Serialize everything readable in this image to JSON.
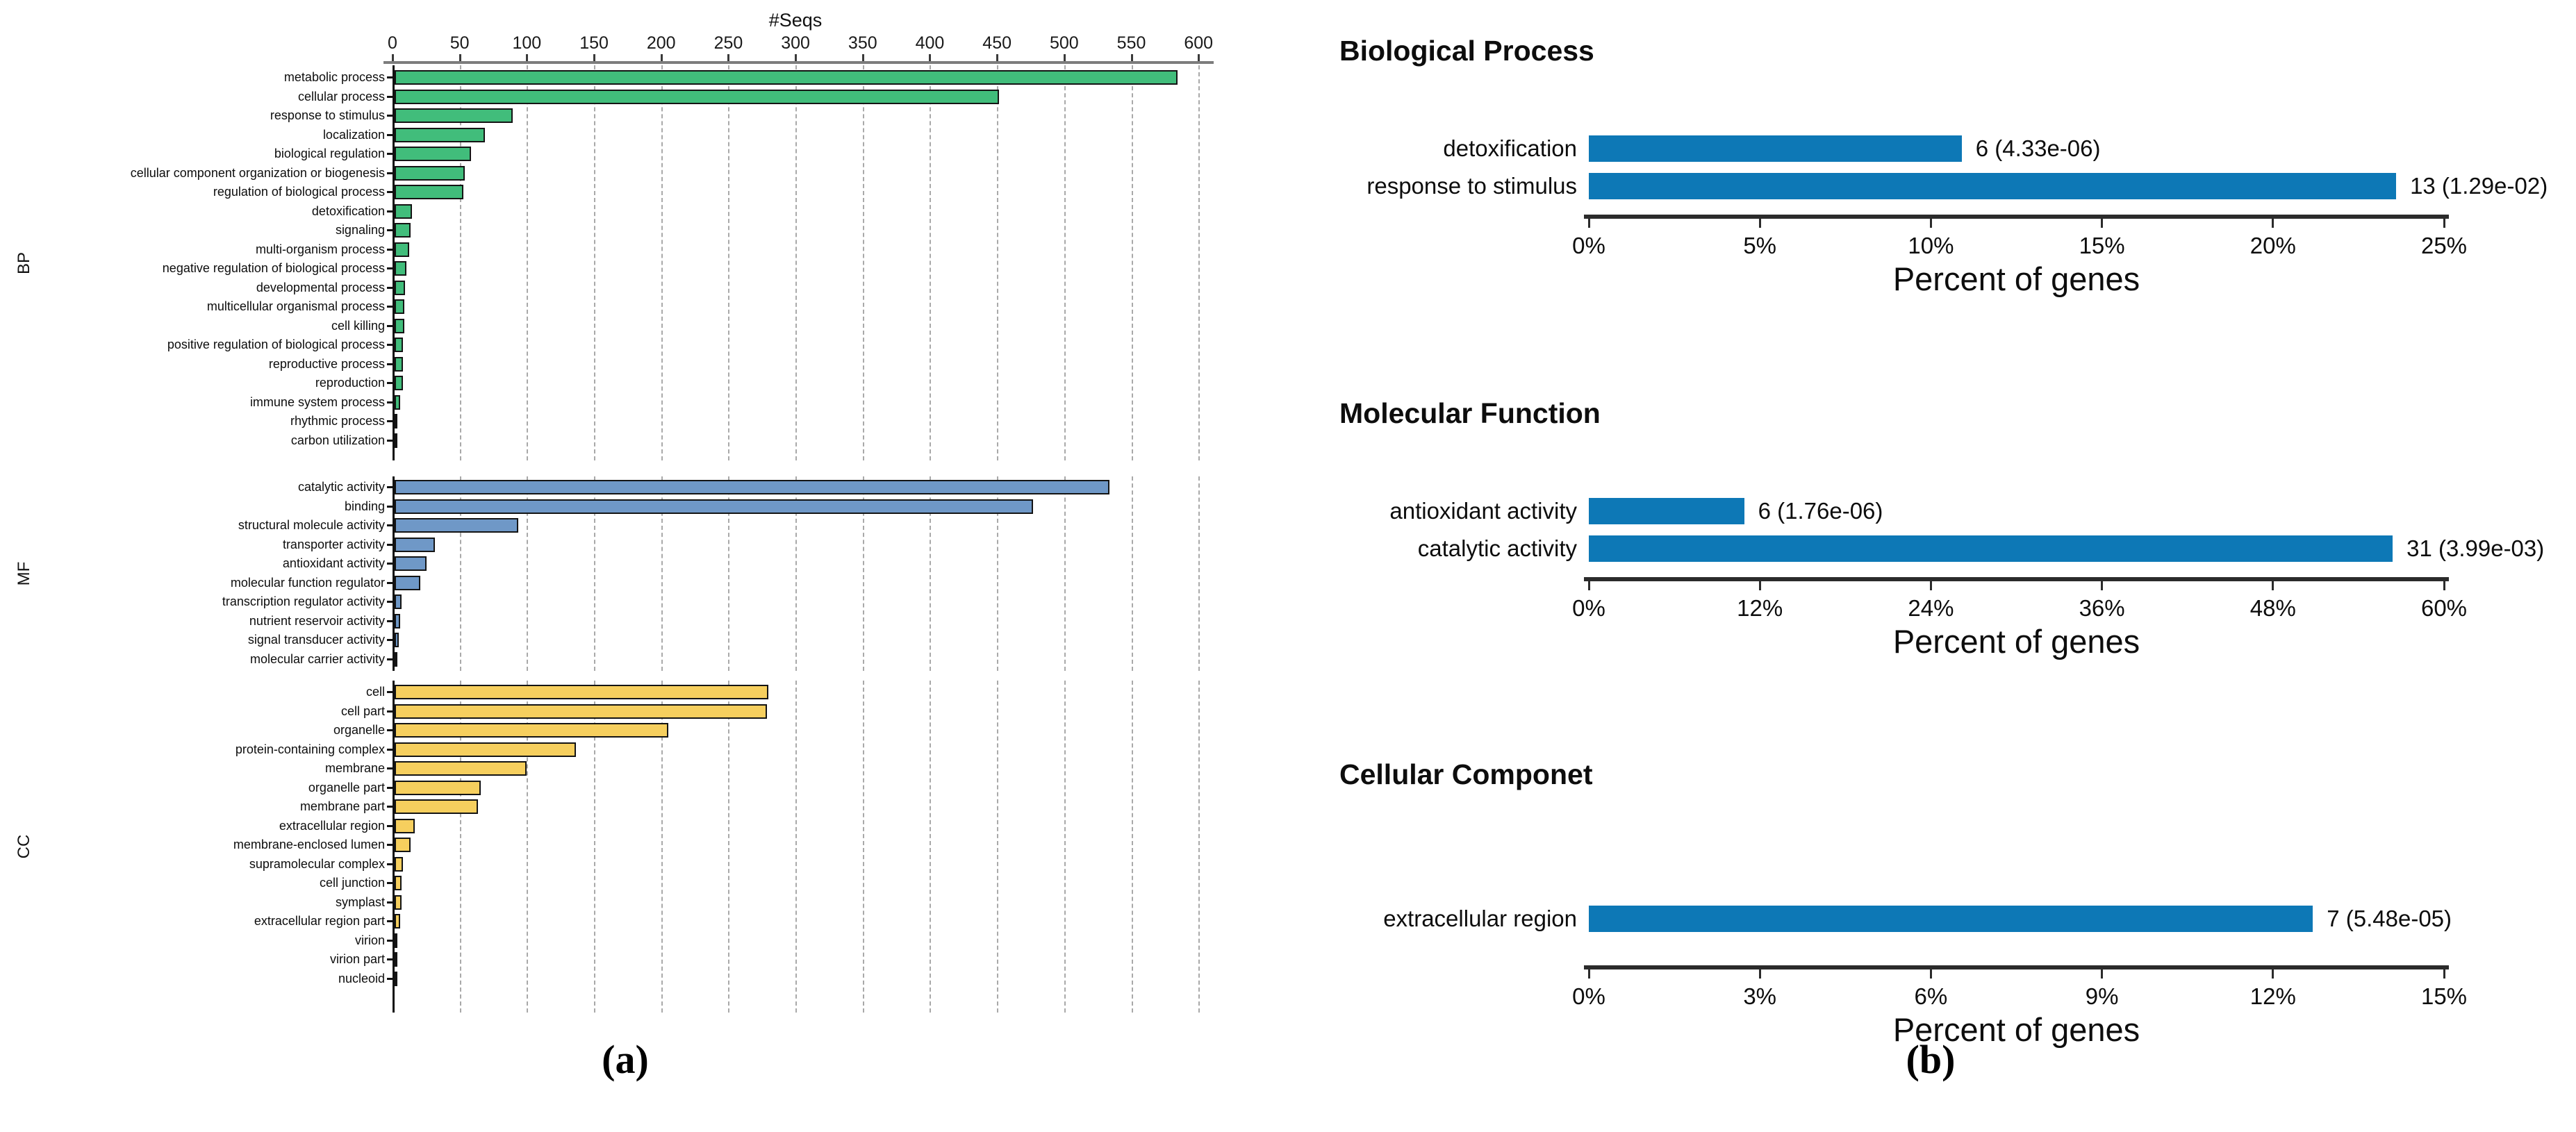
{
  "chart_data": [
    {
      "type": "bar",
      "orientation": "horizontal",
      "panel": "a",
      "xlabel": "#Seqs",
      "xlim": [
        0,
        618
      ],
      "xticks": [
        0,
        50,
        100,
        150,
        200,
        250,
        300,
        350,
        400,
        450,
        500,
        550,
        600
      ],
      "grid": "vertical-dashed",
      "sections": [
        {
          "label": "BP",
          "color": "#41bd7b",
          "categories": [
            "metabolic process",
            "cellular process",
            "response to stimulus",
            "localization",
            "biological regulation",
            "cellular component organization or biogenesis",
            "regulation of biological process",
            "detoxification",
            "signaling",
            "multi-organism process",
            "negative regulation of biological process",
            "developmental process",
            "multicellular organismal process",
            "cell killing",
            "positive regulation of biological process",
            "reproductive process",
            "reproduction",
            "immune system process",
            "rhythmic process",
            "carbon utilization"
          ],
          "values": [
            583,
            450,
            88,
            67,
            57,
            52,
            51,
            13,
            12,
            11,
            9,
            8,
            7,
            7,
            6,
            6,
            6,
            4,
            2,
            1
          ]
        },
        {
          "label": "MF",
          "color": "#6f98c7",
          "categories": [
            "catalytic activity",
            "binding",
            "structural molecule activity",
            "transporter activity",
            "antioxidant activity",
            "molecular function regulator",
            "transcription regulator activity",
            "nutrient reservoir activity",
            "signal transducer activity",
            "molecular carrier activity"
          ],
          "values": [
            532,
            475,
            92,
            30,
            24,
            19,
            5,
            4,
            3,
            2
          ]
        },
        {
          "label": "CC",
          "color": "#f6cf5e",
          "categories": [
            "cell",
            "cell part",
            "organelle",
            "protein-containing complex",
            "membrane",
            "organelle part",
            "membrane part",
            "extracellular region",
            "membrane-enclosed lumen",
            "supramolecular complex",
            "cell junction",
            "symplast",
            "extracellular region part",
            "virion",
            "virion part",
            "nucleoid"
          ],
          "values": [
            278,
            277,
            204,
            135,
            98,
            64,
            62,
            15,
            12,
            6,
            5,
            5,
            4,
            2,
            2,
            1
          ]
        }
      ]
    },
    {
      "type": "bar",
      "orientation": "horizontal",
      "panel": "b",
      "title": "Biological Process",
      "xlabel": "Percent of genes",
      "xlim_pct": [
        0,
        25
      ],
      "xtick_labels": [
        "0%",
        "5%",
        "10%",
        "15%",
        "20%",
        "25%"
      ],
      "bar_color": "#0d78b6",
      "categories": [
        "detoxification",
        "response to stimulus"
      ],
      "values_pct": [
        10.9,
        23.6
      ],
      "annotations": [
        "6 (4.33e-06)",
        "13 (1.29e-02)"
      ]
    },
    {
      "type": "bar",
      "orientation": "horizontal",
      "panel": "b",
      "title": "Molecular Function",
      "xlabel": "Percent of genes",
      "xlim_pct": [
        0,
        60
      ],
      "xtick_labels": [
        "0%",
        "12%",
        "24%",
        "36%",
        "48%",
        "60%"
      ],
      "bar_color": "#0d78b6",
      "categories": [
        "antioxidant activity",
        "catalytic activity"
      ],
      "values_pct": [
        10.9,
        56.4
      ],
      "annotations": [
        "6 (1.76e-06)",
        "31 (3.99e-03)"
      ]
    },
    {
      "type": "bar",
      "orientation": "horizontal",
      "panel": "b",
      "title": "Cellular Componet",
      "xlabel": "Percent of genes",
      "xlim_pct": [
        0,
        15
      ],
      "xtick_labels": [
        "0%",
        "3%",
        "6%",
        "9%",
        "12%",
        "15%"
      ],
      "bar_color": "#0d78b6",
      "categories": [
        "extracellular region"
      ],
      "values_pct": [
        12.7
      ],
      "annotations": [
        "7 (5.48e-05)"
      ]
    }
  ],
  "panel_labels": {
    "a": "(a)",
    "b": "(b)"
  }
}
